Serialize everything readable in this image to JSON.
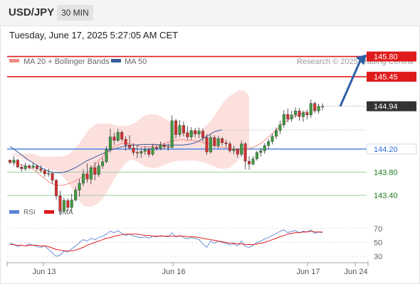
{
  "header": {
    "symbol": "USD/JPY",
    "timeframe": "30 MIN"
  },
  "timestamp": "Tuesday, June 17, 2025 5:27:05 AM CET",
  "colors": {
    "resistance": "#e01b1b",
    "support_line": "#5b8ee6",
    "support_label": "#2d6fe0",
    "support_green": "#1f7a1f",
    "bull": "#3e9b3e",
    "bear": "#d63030",
    "bollinger_band": "#fbd5d3",
    "ma20": "#f28a85",
    "ma50": "#3a5a9c",
    "rsi": "#5b84d6",
    "rsi_ma": "#e01b1b",
    "current_price_bg": "#333333",
    "arrow": "#2e5fa6"
  },
  "chart_data": [
    {
      "type": "candlestick",
      "title": "USD/JPY",
      "legend": [
        {
          "name": "MA 20 + Bollinger Bands",
          "color": "#f28a85"
        },
        {
          "name": "MA 50",
          "color": "#3a5a9c"
        }
      ],
      "watermark": "Research © 2025 Trading Central",
      "x_tick_labels": [
        "Jun 13",
        "Jun 16",
        "Jun 17",
        "Jun 24"
      ],
      "y_domain": [
        142.8,
        146.2
      ],
      "current_price": 144.94,
      "levels": [
        {
          "value": 145.8,
          "label": "145.80",
          "kind": "resistance"
        },
        {
          "value": 145.45,
          "label": "145.45",
          "kind": "resistance"
        },
        {
          "value": 144.2,
          "label": "144.20",
          "kind": "pivot"
        },
        {
          "value": 143.8,
          "label": "143.80",
          "kind": "support"
        },
        {
          "value": 143.4,
          "label": "143.40",
          "kind": "support"
        }
      ],
      "target_arrow": {
        "from": 144.94,
        "to": 145.8
      },
      "candles": [
        [
          144.01,
          144.01,
          143.94,
          143.97
        ],
        [
          143.97,
          144.08,
          143.91,
          144.01
        ],
        [
          144.01,
          144.03,
          143.87,
          143.89
        ],
        [
          143.89,
          143.94,
          143.81,
          143.86
        ],
        [
          143.86,
          143.97,
          143.82,
          143.91
        ],
        [
          143.91,
          143.94,
          143.84,
          143.88
        ],
        [
          143.88,
          143.97,
          143.86,
          143.91
        ],
        [
          143.91,
          143.93,
          143.82,
          143.86
        ],
        [
          143.86,
          143.92,
          143.79,
          143.83
        ],
        [
          143.83,
          143.86,
          143.72,
          143.77
        ],
        [
          143.77,
          143.86,
          143.72,
          143.78
        ],
        [
          143.78,
          143.8,
          143.6,
          143.66
        ],
        [
          143.66,
          143.68,
          143.33,
          143.39
        ],
        [
          143.39,
          143.48,
          143.06,
          143.13
        ],
        [
          143.13,
          143.36,
          143.11,
          143.31
        ],
        [
          143.31,
          143.35,
          143.13,
          143.19
        ],
        [
          143.19,
          143.43,
          143.12,
          143.32
        ],
        [
          143.32,
          143.55,
          143.29,
          143.49
        ],
        [
          143.49,
          143.68,
          143.38,
          143.61
        ],
        [
          143.61,
          143.85,
          143.56,
          143.77
        ],
        [
          143.77,
          143.95,
          143.62,
          143.68
        ],
        [
          143.68,
          143.92,
          143.59,
          143.88
        ],
        [
          143.88,
          143.98,
          143.66,
          143.76
        ],
        [
          143.76,
          143.97,
          143.72,
          143.91
        ],
        [
          143.91,
          144.05,
          143.86,
          143.98
        ],
        [
          143.98,
          144.25,
          143.95,
          144.19
        ],
        [
          144.19,
          144.55,
          144.14,
          144.41
        ],
        [
          144.41,
          144.48,
          144.27,
          144.35
        ],
        [
          144.35,
          144.55,
          144.32,
          144.49
        ],
        [
          144.49,
          144.52,
          144.33,
          144.37
        ],
        [
          144.37,
          144.42,
          144.17,
          144.27
        ],
        [
          144.27,
          144.44,
          144.19,
          144.22
        ],
        [
          144.22,
          144.3,
          144.09,
          144.14
        ],
        [
          144.14,
          144.27,
          144.04,
          144.13
        ],
        [
          144.13,
          144.22,
          144.05,
          144.16
        ],
        [
          144.16,
          144.25,
          144.1,
          144.19
        ],
        [
          144.19,
          144.23,
          144.06,
          144.11
        ],
        [
          144.11,
          144.29,
          144.08,
          144.23
        ],
        [
          144.23,
          144.26,
          144.17,
          144.21
        ],
        [
          144.21,
          144.33,
          144.18,
          144.27
        ],
        [
          144.27,
          144.3,
          144.2,
          144.24
        ],
        [
          144.24,
          144.3,
          144.17,
          144.23
        ],
        [
          144.23,
          144.78,
          144.21,
          144.69
        ],
        [
          144.69,
          144.72,
          144.38,
          144.45
        ],
        [
          144.45,
          144.7,
          144.41,
          144.61
        ],
        [
          144.61,
          144.68,
          144.42,
          144.48
        ],
        [
          144.48,
          144.6,
          144.36,
          144.41
        ],
        [
          144.41,
          144.58,
          144.36,
          144.52
        ],
        [
          144.52,
          144.56,
          144.4,
          144.46
        ],
        [
          144.46,
          144.57,
          144.39,
          144.51
        ],
        [
          144.51,
          144.55,
          144.33,
          144.4
        ],
        [
          144.4,
          144.46,
          144.1,
          144.15
        ],
        [
          144.15,
          144.45,
          144.12,
          144.4
        ],
        [
          144.4,
          144.44,
          144.22,
          144.26
        ],
        [
          144.26,
          144.43,
          144.21,
          144.38
        ],
        [
          144.38,
          144.41,
          144.26,
          144.31
        ],
        [
          144.31,
          144.36,
          144.23,
          144.29
        ],
        [
          144.29,
          144.33,
          144.14,
          144.17
        ],
        [
          144.17,
          144.26,
          144.11,
          144.2
        ],
        [
          144.2,
          144.21,
          144.05,
          144.11
        ],
        [
          144.11,
          144.35,
          144.07,
          144.29
        ],
        [
          144.29,
          144.32,
          143.85,
          143.99
        ],
        [
          143.99,
          144.08,
          143.84,
          143.94
        ],
        [
          143.94,
          144.08,
          143.92,
          144.03
        ],
        [
          144.03,
          144.17,
          144.0,
          144.14
        ],
        [
          144.14,
          144.22,
          144.07,
          144.17
        ],
        [
          144.17,
          144.3,
          144.12,
          144.26
        ],
        [
          144.26,
          144.37,
          144.2,
          144.33
        ],
        [
          144.33,
          144.47,
          144.28,
          144.42
        ],
        [
          144.42,
          144.57,
          144.37,
          144.52
        ],
        [
          144.52,
          144.69,
          144.46,
          144.62
        ],
        [
          144.62,
          144.87,
          144.57,
          144.8
        ],
        [
          144.8,
          144.9,
          144.66,
          144.72
        ],
        [
          144.72,
          144.86,
          144.67,
          144.79
        ],
        [
          144.79,
          144.92,
          144.74,
          144.86
        ],
        [
          144.86,
          144.91,
          144.69,
          144.76
        ],
        [
          144.76,
          144.87,
          144.67,
          144.83
        ],
        [
          144.83,
          144.88,
          144.71,
          144.79
        ],
        [
          144.79,
          145.06,
          144.74,
          144.99
        ],
        [
          144.99,
          145.02,
          144.82,
          144.86
        ],
        [
          144.86,
          144.98,
          144.81,
          144.94
        ],
        [
          144.94,
          144.99,
          144.87,
          144.94
        ]
      ],
      "ma20": [
        143.98,
        143.96,
        143.95,
        143.93,
        143.91,
        143.88,
        143.85,
        143.8,
        143.74,
        143.69,
        143.64,
        143.6,
        143.58,
        143.57,
        143.58,
        143.6,
        143.62,
        143.65,
        143.69,
        143.73,
        143.78,
        143.85,
        143.93,
        144.0,
        144.07,
        144.14,
        144.2,
        144.24,
        144.27,
        144.3,
        144.3,
        144.29,
        144.28,
        144.26,
        144.24,
        144.24,
        144.24,
        144.25,
        144.26,
        144.28,
        144.3,
        144.32,
        144.34,
        144.35,
        144.36,
        144.36,
        144.35,
        144.35,
        144.34,
        144.33,
        144.31,
        144.3,
        144.28,
        144.26,
        144.24,
        144.23,
        144.22,
        144.21,
        144.2,
        144.19,
        144.19,
        144.2,
        144.21,
        144.23,
        144.26,
        144.3,
        144.35,
        144.41,
        144.47,
        144.53,
        144.6,
        144.65,
        144.7,
        144.74,
        144.77,
        144.8,
        144.83,
        144.85
      ],
      "bb_upper": [
        144.12,
        144.12,
        144.12,
        144.12,
        144.12,
        144.12,
        144.12,
        144.1,
        144.07,
        144.07,
        144.07,
        144.07,
        144.07,
        144.07,
        144.08,
        144.1,
        144.15,
        144.22,
        144.3,
        144.4,
        144.5,
        144.57,
        144.62,
        144.64,
        144.64,
        144.64,
        144.64,
        144.62,
        144.6,
        144.6,
        144.6,
        144.61,
        144.64,
        144.68,
        144.74,
        144.78,
        144.8,
        144.8,
        144.8,
        144.77,
        144.73,
        144.69,
        144.64,
        144.6,
        144.56,
        144.54,
        144.52,
        144.52,
        144.52,
        144.53,
        144.56,
        144.62,
        144.68,
        144.78,
        144.88,
        144.98,
        145.06,
        145.12,
        145.16,
        145.2,
        145.22,
        145.2,
        145.12
      ],
      "bb_lower": [
        143.83,
        143.82,
        143.78,
        143.7,
        143.62,
        143.52,
        143.39,
        143.3,
        143.22,
        143.2,
        143.2,
        143.23,
        143.27,
        143.34,
        143.45,
        143.56,
        143.68,
        143.78,
        143.87,
        143.96,
        144.01,
        144.01,
        143.98,
        143.94,
        143.9,
        143.88,
        143.87,
        143.87,
        143.9,
        143.93,
        143.95,
        143.97,
        143.99,
        144.0,
        144.0,
        144.0,
        144.0,
        144.0,
        143.99,
        143.97,
        143.95,
        143.92,
        143.9,
        143.87,
        143.86,
        143.86,
        143.88,
        143.94,
        144.0,
        144.07,
        144.14,
        144.23,
        144.33,
        144.42,
        144.5,
        144.57
      ],
      "ma50": [
        144.25,
        144.2,
        144.15,
        144.1,
        144.05,
        144.0,
        143.96,
        143.92,
        143.88,
        143.85,
        143.82,
        143.8,
        143.79,
        143.79,
        143.8,
        143.82,
        143.85,
        143.88,
        143.92,
        143.96,
        144.0,
        144.03,
        144.06,
        144.09,
        144.12,
        144.15,
        144.18,
        144.2,
        144.22,
        144.24,
        144.25,
        144.26,
        144.27,
        144.27,
        144.28,
        144.28,
        144.28,
        144.28,
        144.28,
        144.27,
        144.27,
        144.27,
        144.27,
        144.27,
        144.27,
        144.27,
        144.28,
        144.29,
        144.31,
        144.34,
        144.38,
        144.42,
        144.46,
        144.5,
        144.52,
        144.53
      ]
    },
    {
      "type": "line",
      "legend": [
        {
          "name": "RSI",
          "color": "#5b84d6"
        },
        {
          "name": "9MA",
          "color": "#e01b1b"
        }
      ],
      "y_tick_labels": [
        "70",
        "50",
        "30"
      ],
      "levels": [
        70,
        50,
        30
      ],
      "ylim": [
        20,
        80
      ],
      "series": [
        {
          "name": "RSI",
          "values": [
            49,
            47,
            44,
            46,
            45,
            48,
            46,
            44,
            43,
            45,
            40,
            35,
            30,
            32,
            38,
            36,
            41,
            45,
            50,
            54,
            52,
            56,
            54,
            57,
            59,
            62,
            66,
            64,
            67,
            63,
            60,
            62,
            59,
            58,
            57,
            58,
            56,
            59,
            58,
            60,
            59,
            58,
            64,
            58,
            60,
            57,
            55,
            57,
            56,
            54,
            48,
            43,
            52,
            49,
            52,
            50,
            49,
            46,
            48,
            45,
            52,
            44,
            43,
            46,
            50,
            52,
            55,
            57,
            60,
            63,
            66,
            68,
            64,
            66,
            67,
            64,
            66,
            65,
            68,
            63,
            65,
            64
          ]
        },
        {
          "name": "9MA",
          "values": [
            47,
            47,
            46,
            46,
            45,
            46,
            46,
            46,
            45,
            45,
            44,
            42,
            40,
            39,
            38,
            38,
            38,
            39,
            41,
            43,
            46,
            48,
            50,
            52,
            54,
            56,
            57,
            59,
            60,
            61,
            62,
            62,
            62,
            62,
            61,
            60,
            60,
            59,
            59,
            59,
            59,
            59,
            59,
            59,
            59,
            59,
            58,
            58,
            58,
            57,
            56,
            55,
            54,
            53,
            52,
            51,
            50,
            49,
            49,
            48,
            48,
            47,
            47,
            47,
            48,
            49,
            50,
            52,
            54,
            56,
            58,
            60,
            62,
            63,
            64,
            64,
            65,
            65,
            66,
            65,
            65,
            65
          ]
        }
      ]
    }
  ]
}
